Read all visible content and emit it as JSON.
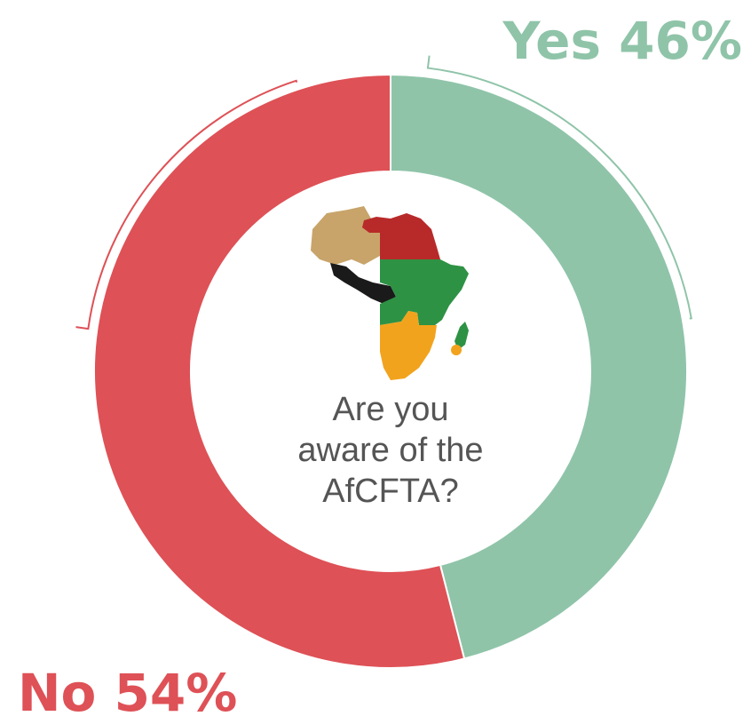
{
  "chart_data": {
    "type": "pie",
    "donut": true,
    "title": "",
    "center_text_lines": [
      "Are you",
      "aware of the",
      "AfCFTA?"
    ],
    "slices": [
      {
        "label": "Yes",
        "value": 46,
        "display": "Yes 46%",
        "color": "#8fc4a9"
      },
      {
        "label": "No",
        "value": 54,
        "display": "No 54%",
        "color": "#de5156"
      }
    ],
    "legend": "none",
    "start_angle_deg": 0,
    "direction": "clockwise"
  },
  "logo": {
    "name": "africa-puzzle-logo",
    "colors": [
      "#c8a46a",
      "#b82a2a",
      "#2e9244",
      "#f2a31d",
      "#1a1a1a"
    ]
  }
}
